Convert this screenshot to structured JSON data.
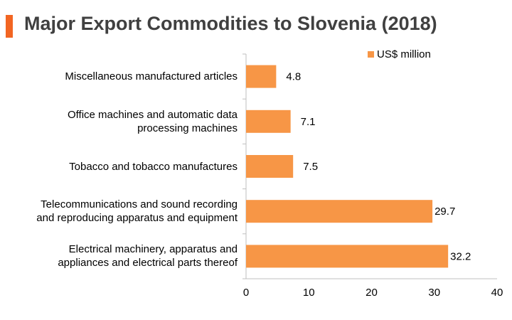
{
  "chart_data": {
    "type": "bar",
    "orientation": "horizontal",
    "title": "Major Export Commodities to Slovenia (2018)",
    "categories": [
      "Miscellaneous manufactured articles",
      "Office machines and automatic data processing machines",
      "Tobacco and tobacco manufactures",
      "Telecommunications and sound recording and reproducing apparatus and equipment",
      "Electrical machinery, apparatus and appliances and electrical parts thereof"
    ],
    "category_lines": [
      [
        "Miscellaneous manufactured articles"
      ],
      [
        "Office machines and automatic data",
        "processing machines"
      ],
      [
        "Tobacco and tobacco manufactures"
      ],
      [
        "Telecommunications and sound recording",
        "and reproducing apparatus and equipment"
      ],
      [
        "Electrical machinery, apparatus and",
        "appliances and electrical parts thereof"
      ]
    ],
    "series": [
      {
        "name": "US$ million",
        "values": [
          4.8,
          7.1,
          7.5,
          29.7,
          32.2
        ]
      }
    ],
    "data_labels": [
      "4.8",
      "7.1",
      "7.5",
      "29.7",
      "32.2"
    ],
    "xlim": [
      0,
      40
    ],
    "xticks": [
      0,
      10,
      20,
      30,
      40
    ],
    "grid": false,
    "legend_position": "top-right"
  },
  "colors": {
    "bar": "#F79646",
    "title_accent": "#F26522",
    "axis": "#BFBFBF"
  }
}
